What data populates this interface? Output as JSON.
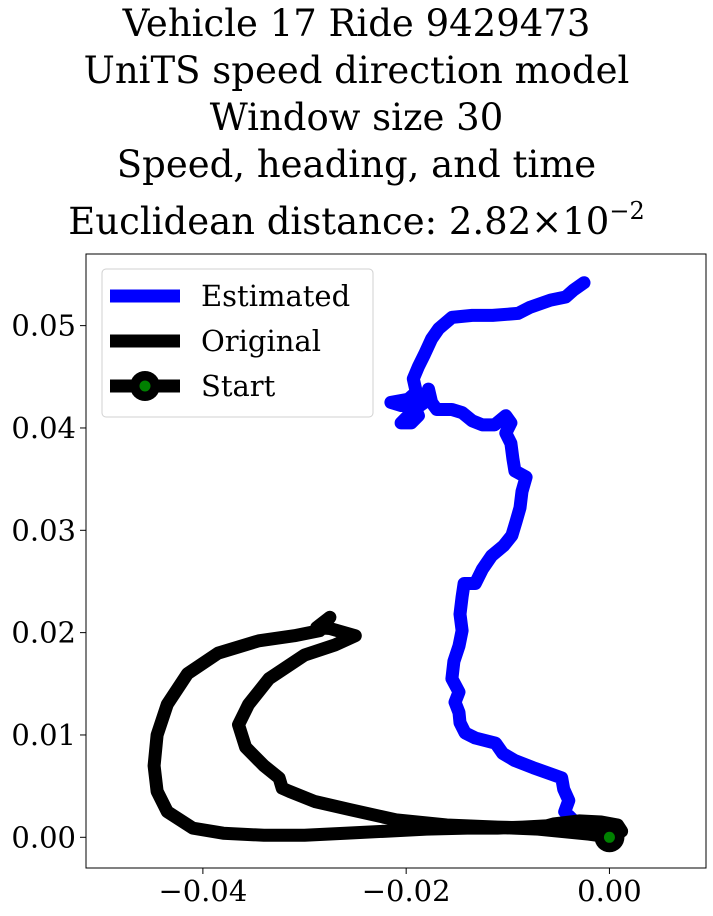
{
  "title_lines": [
    "Vehicle 17 Ride 9429473",
    "UniTS speed direction model",
    "Window size 30",
    "Speed, heading, and time"
  ],
  "title_last_prefix": "Euclidean distance: 2.82×10",
  "title_last_exponent": "−2",
  "chart_data": {
    "type": "line",
    "xlim": [
      -0.0515,
      0.0095
    ],
    "ylim": [
      -0.003,
      0.057
    ],
    "x_ticks": [
      -0.04,
      -0.02,
      0.0
    ],
    "x_tick_labels": [
      "−0.04",
      "−0.02",
      "0.00"
    ],
    "y_ticks": [
      0.0,
      0.01,
      0.02,
      0.03,
      0.04,
      0.05
    ],
    "y_tick_labels": [
      "0.00",
      "0.01",
      "0.02",
      "0.03",
      "0.04",
      "0.05"
    ],
    "grid": false,
    "legend": {
      "position": "top-left",
      "entries": [
        {
          "label": "Estimated",
          "color": "#0000ff",
          "marker": false
        },
        {
          "label": "Original",
          "color": "#000000",
          "marker": false
        },
        {
          "label": "Start",
          "color": "#000000",
          "marker": true,
          "marker_fill": "#008000"
        }
      ]
    },
    "series": [
      {
        "name": "Estimated",
        "color": "#0000ff",
        "points": [
          [
            0.0,
            0.0
          ],
          [
            -0.002,
            0.0007
          ],
          [
            -0.0036,
            0.0017
          ],
          [
            -0.0044,
            0.0025
          ],
          [
            -0.004,
            0.0036
          ],
          [
            -0.0045,
            0.0047
          ],
          [
            -0.0047,
            0.0058
          ],
          [
            -0.0058,
            0.0062
          ],
          [
            -0.0075,
            0.0068
          ],
          [
            -0.0093,
            0.0075
          ],
          [
            -0.0105,
            0.0082
          ],
          [
            -0.0112,
            0.0092
          ],
          [
            -0.0132,
            0.0097
          ],
          [
            -0.0142,
            0.0102
          ],
          [
            -0.0147,
            0.0112
          ],
          [
            -0.0148,
            0.0122
          ],
          [
            -0.0152,
            0.0132
          ],
          [
            -0.0148,
            0.0142
          ],
          [
            -0.0155,
            0.0155
          ],
          [
            -0.0153,
            0.0172
          ],
          [
            -0.0148,
            0.0187
          ],
          [
            -0.0145,
            0.0202
          ],
          [
            -0.0147,
            0.0218
          ],
          [
            -0.0145,
            0.0235
          ],
          [
            -0.0143,
            0.0248
          ],
          [
            -0.0132,
            0.0248
          ],
          [
            -0.0125,
            0.0262
          ],
          [
            -0.0116,
            0.0275
          ],
          [
            -0.0104,
            0.0285
          ],
          [
            -0.0096,
            0.0295
          ],
          [
            -0.0092,
            0.0308
          ],
          [
            -0.0088,
            0.0322
          ],
          [
            -0.0086,
            0.0338
          ],
          [
            -0.0082,
            0.0352
          ],
          [
            -0.0093,
            0.0358
          ],
          [
            -0.0095,
            0.037
          ],
          [
            -0.0097,
            0.0385
          ],
          [
            -0.0102,
            0.0395
          ],
          [
            -0.0097,
            0.0405
          ],
          [
            -0.0102,
            0.0412
          ],
          [
            -0.0113,
            0.0403
          ],
          [
            -0.0125,
            0.0403
          ],
          [
            -0.0135,
            0.0407
          ],
          [
            -0.0145,
            0.0415
          ],
          [
            -0.0155,
            0.0418
          ],
          [
            -0.017,
            0.0418
          ],
          [
            -0.0175,
            0.0425
          ],
          [
            -0.0178,
            0.0438
          ],
          [
            -0.0182,
            0.0425
          ],
          [
            -0.0192,
            0.0418
          ],
          [
            -0.0205,
            0.0405
          ],
          [
            -0.0195,
            0.0405
          ],
          [
            -0.0188,
            0.0412
          ],
          [
            -0.0192,
            0.0422
          ],
          [
            -0.0205,
            0.0422
          ],
          [
            -0.0215,
            0.0425
          ],
          [
            -0.0198,
            0.0428
          ],
          [
            -0.019,
            0.0435
          ],
          [
            -0.0193,
            0.0448
          ],
          [
            -0.0188,
            0.046
          ],
          [
            -0.0182,
            0.0472
          ],
          [
            -0.0175,
            0.0487
          ],
          [
            -0.0168,
            0.0497
          ],
          [
            -0.0155,
            0.0508
          ],
          [
            -0.0135,
            0.051
          ],
          [
            -0.0115,
            0.051
          ],
          [
            -0.009,
            0.0512
          ],
          [
            -0.0078,
            0.0518
          ],
          [
            -0.0058,
            0.0525
          ],
          [
            -0.0043,
            0.0528
          ],
          [
            -0.0035,
            0.0535
          ],
          [
            -0.0025,
            0.0542
          ]
        ]
      },
      {
        "name": "Original",
        "color": "#000000",
        "points": [
          [
            0.0,
            0.0
          ],
          [
            -0.0008,
            0.0008
          ],
          [
            -0.0028,
            0.0012
          ],
          [
            -0.0045,
            0.0012
          ],
          [
            -0.0065,
            0.0011
          ],
          [
            -0.0085,
            0.001
          ],
          [
            -0.011,
            0.0009
          ],
          [
            -0.014,
            0.0009
          ],
          [
            -0.018,
            0.0008
          ],
          [
            -0.022,
            0.0006
          ],
          [
            -0.026,
            0.0004
          ],
          [
            -0.03,
            0.0002
          ],
          [
            -0.034,
            0.0002
          ],
          [
            -0.038,
            0.0004
          ],
          [
            -0.041,
            0.0009
          ],
          [
            -0.0435,
            0.0025
          ],
          [
            -0.0445,
            0.0045
          ],
          [
            -0.0448,
            0.007
          ],
          [
            -0.0445,
            0.01
          ],
          [
            -0.0435,
            0.013
          ],
          [
            -0.0415,
            0.016
          ],
          [
            -0.0385,
            0.018
          ],
          [
            -0.0345,
            0.0192
          ],
          [
            -0.031,
            0.0197
          ],
          [
            -0.0285,
            0.0202
          ],
          [
            -0.0275,
            0.0215
          ],
          [
            -0.0288,
            0.0205
          ],
          [
            -0.0275,
            0.0204
          ],
          [
            -0.025,
            0.0197
          ],
          [
            -0.027,
            0.0188
          ],
          [
            -0.03,
            0.0178
          ],
          [
            -0.0335,
            0.0155
          ],
          [
            -0.0355,
            0.013
          ],
          [
            -0.0365,
            0.011
          ],
          [
            -0.0358,
            0.0088
          ],
          [
            -0.034,
            0.007
          ],
          [
            -0.0325,
            0.0058
          ],
          [
            -0.0322,
            0.0048
          ],
          [
            -0.0315,
            0.0045
          ],
          [
            -0.029,
            0.0035
          ],
          [
            -0.0255,
            0.0027
          ],
          [
            -0.021,
            0.0017
          ],
          [
            -0.016,
            0.0012
          ],
          [
            -0.011,
            0.001
          ],
          [
            -0.007,
            0.0009
          ],
          [
            -0.0055,
            0.0013
          ],
          [
            -0.003,
            0.0016
          ],
          [
            -0.0008,
            0.0015
          ],
          [
            0.0008,
            0.0012
          ],
          [
            0.0012,
            0.0006
          ],
          [
            0.0002,
            0.0
          ],
          [
            -0.002,
            0.0003
          ],
          [
            -0.007,
            0.0008
          ],
          [
            -0.012,
            0.001
          ]
        ]
      }
    ],
    "start_point": [
      0.0,
      0.0
    ]
  }
}
